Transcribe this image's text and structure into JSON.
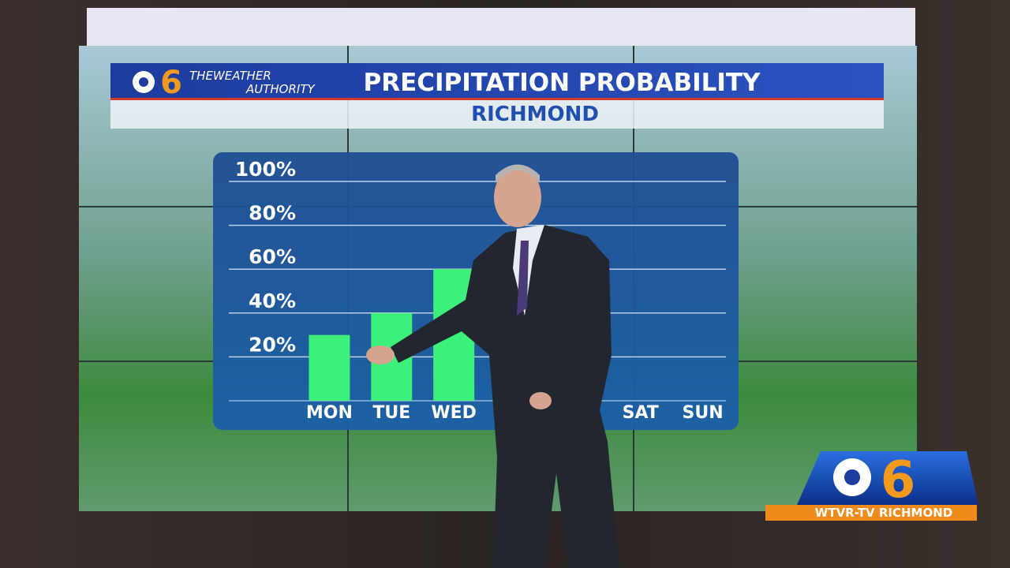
{
  "branding": {
    "header_logo": "6",
    "header_tagline_1": "THEWEATHER",
    "header_tagline_2": "AUTHORITY",
    "station_logo": "6",
    "station": "WTVR-TV RICHMOND"
  },
  "chart_data": {
    "type": "bar",
    "title": "PRECIPITATION PROBABILITY",
    "subtitle": "RICHMOND",
    "categories": [
      "MON",
      "TUE",
      "WED",
      null,
      null,
      "SAT",
      "SUN"
    ],
    "values": [
      30,
      40,
      60,
      null,
      null,
      0,
      0
    ],
    "color": "#3df07a",
    "ylim": [
      0,
      100
    ],
    "yticks": [
      {
        "value": 20,
        "label": "20%"
      },
      {
        "value": 40,
        "label": "40%"
      },
      {
        "value": 60,
        "label": "60%"
      },
      {
        "value": 80,
        "label": "80%"
      },
      {
        "value": 100,
        "label": "100%"
      }
    ],
    "grid": true
  }
}
